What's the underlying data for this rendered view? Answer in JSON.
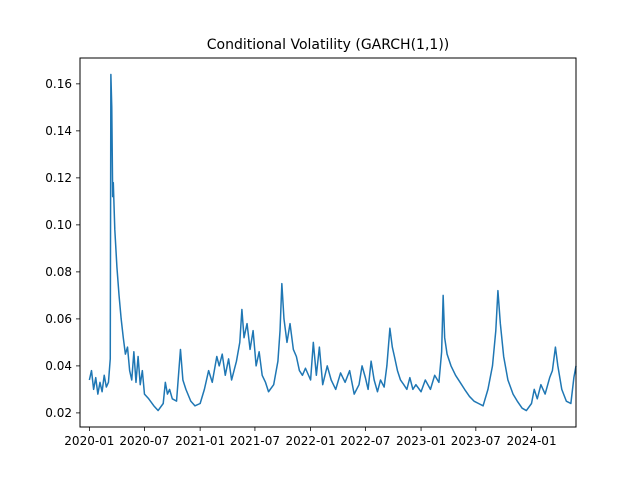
{
  "figure": {
    "title": "Conditional Volatility (GARCH(1,1))"
  },
  "chart_data": {
    "type": "line",
    "title": "Conditional Volatility (GARCH(1,1))",
    "xlabel": "",
    "ylabel": "",
    "x_axis_type": "date",
    "xlim": [
      "2019-12-01",
      "2024-05-27"
    ],
    "ylim": [
      0.014,
      0.171
    ],
    "grid": false,
    "x_ticks": [
      "2020-01",
      "2020-07",
      "2021-01",
      "2021-07",
      "2022-01",
      "2022-07",
      "2023-01",
      "2023-07",
      "2024-01"
    ],
    "y_ticks": [
      0.02,
      0.04,
      0.06,
      0.08,
      0.1,
      0.12,
      0.14,
      0.16
    ],
    "y_tick_labels": [
      "0.02",
      "0.04",
      "0.06",
      "0.08",
      "0.10",
      "0.12",
      "0.14",
      "0.16"
    ],
    "series": [
      {
        "color": "#1f77b4",
        "points": [
          [
            "2020-01-01",
            0.034
          ],
          [
            "2020-01-08",
            0.038
          ],
          [
            "2020-01-15",
            0.03
          ],
          [
            "2020-01-22",
            0.035
          ],
          [
            "2020-01-29",
            0.028
          ],
          [
            "2020-02-05",
            0.033
          ],
          [
            "2020-02-12",
            0.029
          ],
          [
            "2020-02-19",
            0.036
          ],
          [
            "2020-02-26",
            0.031
          ],
          [
            "2020-03-04",
            0.033
          ],
          [
            "2020-03-10",
            0.043
          ],
          [
            "2020-03-12",
            0.164
          ],
          [
            "2020-03-15",
            0.15
          ],
          [
            "2020-03-18",
            0.112
          ],
          [
            "2020-03-20",
            0.118
          ],
          [
            "2020-03-25",
            0.098
          ],
          [
            "2020-04-01",
            0.082
          ],
          [
            "2020-04-08",
            0.07
          ],
          [
            "2020-04-15",
            0.06
          ],
          [
            "2020-04-22",
            0.052
          ],
          [
            "2020-04-29",
            0.045
          ],
          [
            "2020-05-06",
            0.048
          ],
          [
            "2020-05-13",
            0.038
          ],
          [
            "2020-05-20",
            0.034
          ],
          [
            "2020-05-27",
            0.046
          ],
          [
            "2020-06-03",
            0.033
          ],
          [
            "2020-06-10",
            0.044
          ],
          [
            "2020-06-17",
            0.032
          ],
          [
            "2020-06-24",
            0.038
          ],
          [
            "2020-07-01",
            0.028
          ],
          [
            "2020-07-15",
            0.026
          ],
          [
            "2020-08-01",
            0.023
          ],
          [
            "2020-08-15",
            0.021
          ],
          [
            "2020-09-01",
            0.024
          ],
          [
            "2020-09-08",
            0.033
          ],
          [
            "2020-09-15",
            0.028
          ],
          [
            "2020-09-22",
            0.03
          ],
          [
            "2020-10-01",
            0.026
          ],
          [
            "2020-10-15",
            0.025
          ],
          [
            "2020-10-28",
            0.047
          ],
          [
            "2020-11-05",
            0.034
          ],
          [
            "2020-11-15",
            0.03
          ],
          [
            "2020-12-01",
            0.025
          ],
          [
            "2020-12-15",
            0.023
          ],
          [
            "2021-01-01",
            0.024
          ],
          [
            "2021-01-15",
            0.03
          ],
          [
            "2021-01-29",
            0.038
          ],
          [
            "2021-02-10",
            0.033
          ],
          [
            "2021-02-25",
            0.044
          ],
          [
            "2021-03-05",
            0.04
          ],
          [
            "2021-03-15",
            0.045
          ],
          [
            "2021-03-25",
            0.036
          ],
          [
            "2021-04-05",
            0.043
          ],
          [
            "2021-04-15",
            0.034
          ],
          [
            "2021-05-01",
            0.042
          ],
          [
            "2021-05-12",
            0.05
          ],
          [
            "2021-05-19",
            0.064
          ],
          [
            "2021-05-26",
            0.052
          ],
          [
            "2021-06-05",
            0.058
          ],
          [
            "2021-06-15",
            0.047
          ],
          [
            "2021-06-25",
            0.055
          ],
          [
            "2021-07-05",
            0.04
          ],
          [
            "2021-07-15",
            0.046
          ],
          [
            "2021-07-25",
            0.036
          ],
          [
            "2021-08-05",
            0.033
          ],
          [
            "2021-08-15",
            0.029
          ],
          [
            "2021-09-01",
            0.032
          ],
          [
            "2021-09-15",
            0.042
          ],
          [
            "2021-09-22",
            0.055
          ],
          [
            "2021-09-28",
            0.075
          ],
          [
            "2021-10-05",
            0.06
          ],
          [
            "2021-10-15",
            0.05
          ],
          [
            "2021-10-25",
            0.058
          ],
          [
            "2021-11-05",
            0.047
          ],
          [
            "2021-11-15",
            0.044
          ],
          [
            "2021-11-25",
            0.038
          ],
          [
            "2021-12-05",
            0.036
          ],
          [
            "2021-12-15",
            0.039
          ],
          [
            "2022-01-01",
            0.034
          ],
          [
            "2022-01-10",
            0.05
          ],
          [
            "2022-01-20",
            0.036
          ],
          [
            "2022-01-30",
            0.048
          ],
          [
            "2022-02-10",
            0.032
          ],
          [
            "2022-02-25",
            0.04
          ],
          [
            "2022-03-10",
            0.034
          ],
          [
            "2022-03-25",
            0.03
          ],
          [
            "2022-04-10",
            0.037
          ],
          [
            "2022-04-25",
            0.033
          ],
          [
            "2022-05-10",
            0.038
          ],
          [
            "2022-05-25",
            0.028
          ],
          [
            "2022-06-10",
            0.032
          ],
          [
            "2022-06-20",
            0.04
          ],
          [
            "2022-07-01",
            0.035
          ],
          [
            "2022-07-10",
            0.03
          ],
          [
            "2022-07-20",
            0.042
          ],
          [
            "2022-07-30",
            0.034
          ],
          [
            "2022-08-10",
            0.029
          ],
          [
            "2022-08-20",
            0.034
          ],
          [
            "2022-09-01",
            0.031
          ],
          [
            "2022-09-10",
            0.04
          ],
          [
            "2022-09-20",
            0.056
          ],
          [
            "2022-09-28",
            0.048
          ],
          [
            "2022-10-05",
            0.044
          ],
          [
            "2022-10-15",
            0.038
          ],
          [
            "2022-10-25",
            0.034
          ],
          [
            "2022-11-05",
            0.032
          ],
          [
            "2022-11-15",
            0.03
          ],
          [
            "2022-11-25",
            0.035
          ],
          [
            "2022-12-05",
            0.03
          ],
          [
            "2022-12-15",
            0.032
          ],
          [
            "2023-01-01",
            0.029
          ],
          [
            "2023-01-15",
            0.034
          ],
          [
            "2023-02-01",
            0.03
          ],
          [
            "2023-02-15",
            0.036
          ],
          [
            "2023-03-01",
            0.033
          ],
          [
            "2023-03-10",
            0.046
          ],
          [
            "2023-03-15",
            0.07
          ],
          [
            "2023-03-20",
            0.052
          ],
          [
            "2023-03-28",
            0.045
          ],
          [
            "2023-04-10",
            0.04
          ],
          [
            "2023-04-25",
            0.036
          ],
          [
            "2023-05-10",
            0.033
          ],
          [
            "2023-05-25",
            0.03
          ],
          [
            "2023-06-10",
            0.027
          ],
          [
            "2023-06-25",
            0.025
          ],
          [
            "2023-07-10",
            0.024
          ],
          [
            "2023-07-25",
            0.023
          ],
          [
            "2023-08-10",
            0.03
          ],
          [
            "2023-08-25",
            0.04
          ],
          [
            "2023-09-05",
            0.055
          ],
          [
            "2023-09-12",
            0.072
          ],
          [
            "2023-09-20",
            0.058
          ],
          [
            "2023-10-01",
            0.044
          ],
          [
            "2023-10-15",
            0.034
          ],
          [
            "2023-11-01",
            0.028
          ],
          [
            "2023-11-15",
            0.025
          ],
          [
            "2023-12-01",
            0.022
          ],
          [
            "2023-12-15",
            0.021
          ],
          [
            "2024-01-01",
            0.024
          ],
          [
            "2024-01-10",
            0.03
          ],
          [
            "2024-01-20",
            0.026
          ],
          [
            "2024-02-01",
            0.032
          ],
          [
            "2024-02-15",
            0.028
          ],
          [
            "2024-03-01",
            0.035
          ],
          [
            "2024-03-10",
            0.038
          ],
          [
            "2024-03-20",
            0.048
          ],
          [
            "2024-03-28",
            0.04
          ],
          [
            "2024-04-10",
            0.03
          ],
          [
            "2024-04-25",
            0.025
          ],
          [
            "2024-05-10",
            0.024
          ],
          [
            "2024-05-20",
            0.035
          ],
          [
            "2024-05-27",
            0.04
          ]
        ]
      }
    ]
  }
}
